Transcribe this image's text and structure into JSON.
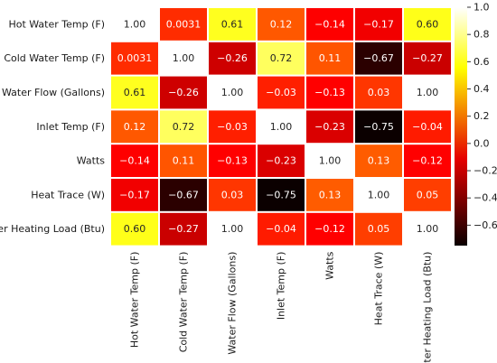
{
  "chart_data": {
    "type": "heatmap",
    "title": "",
    "xlabel": "",
    "ylabel": "",
    "row_labels": [
      "Hot Water Temp (F)",
      "Cold Water Temp (F)",
      "Water Flow (Gallons)",
      "Inlet Temp (F)",
      "Watts",
      "Heat Trace (W)",
      "Water Heating Load (Btu)"
    ],
    "col_labels": [
      "Hot Water Temp (F)",
      "Cold Water Temp (F)",
      "Water Flow (Gallons)",
      "Inlet Temp (F)",
      "Watts",
      "Heat Trace (W)",
      "Water Heating Load (Btu)"
    ],
    "values": [
      [
        1.0,
        0.0031,
        0.61,
        0.12,
        -0.14,
        -0.17,
        0.6
      ],
      [
        0.0031,
        1.0,
        -0.26,
        0.72,
        0.11,
        -0.67,
        -0.27
      ],
      [
        0.61,
        -0.26,
        1.0,
        -0.03,
        -0.13,
        0.03,
        1.0
      ],
      [
        0.12,
        0.72,
        -0.03,
        1.0,
        -0.23,
        -0.75,
        -0.04
      ],
      [
        -0.14,
        0.11,
        -0.13,
        -0.23,
        1.0,
        0.13,
        -0.12
      ],
      [
        -0.17,
        -0.67,
        0.03,
        -0.75,
        0.13,
        1.0,
        0.05
      ],
      [
        0.6,
        -0.27,
        1.0,
        -0.04,
        -0.12,
        0.05,
        1.0
      ]
    ],
    "annotations": [
      [
        "1.00",
        "0.0031",
        "0.61",
        "0.12",
        "−0.14",
        "−0.17",
        "0.60"
      ],
      [
        "0.0031",
        "1.00",
        "−0.26",
        "0.72",
        "0.11",
        "−0.67",
        "−0.27"
      ],
      [
        "0.61",
        "−0.26",
        "1.00",
        "−0.03",
        "−0.13",
        "0.03",
        "1.00"
      ],
      [
        "0.12",
        "0.72",
        "−0.03",
        "1.00",
        "−0.23",
        "−0.75",
        "−0.04"
      ],
      [
        "−0.14",
        "0.11",
        "−0.13",
        "−0.23",
        "1.00",
        "0.13",
        "−0.12"
      ],
      [
        "−0.17",
        "−0.67",
        "0.03",
        "−0.75",
        "0.13",
        "1.00",
        "0.05"
      ],
      [
        "0.60",
        "−0.27",
        "1.00",
        "−0.04",
        "−0.12",
        "0.05",
        "1.00"
      ]
    ],
    "colormap": "hot",
    "vmin": -0.75,
    "vmax": 1.0,
    "colorbar_ticks": [
      1.0,
      0.8,
      0.6,
      0.4,
      0.2,
      0.0,
      -0.2,
      -0.4,
      -0.6
    ],
    "colorbar_tick_labels": [
      "1.0",
      "0.8",
      "0.6",
      "0.4",
      "0.2",
      "0.0",
      "−0.2",
      "−0.4",
      "−0.6"
    ],
    "colorbar_position": "right",
    "grid": false
  }
}
